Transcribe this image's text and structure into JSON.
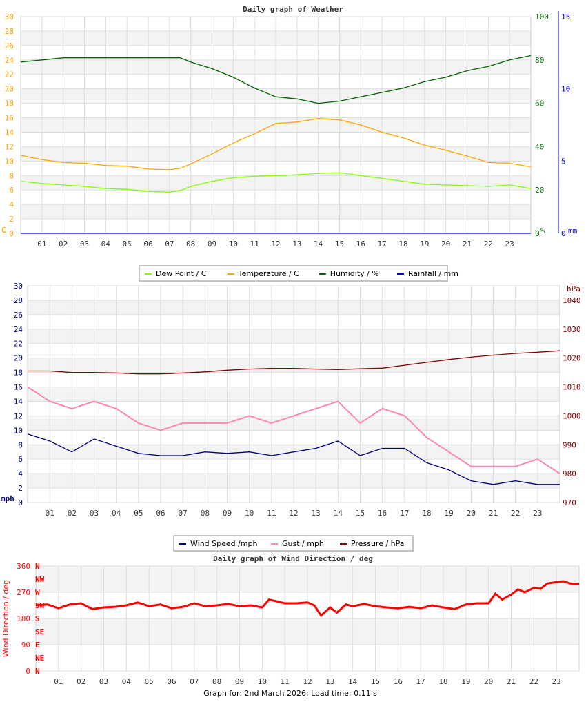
{
  "footer": "Graph for: 2nd March 2026; Load time: 0.11 s",
  "hours": [
    "01",
    "02",
    "03",
    "04",
    "05",
    "06",
    "07",
    "08",
    "09",
    "10",
    "11",
    "12",
    "13",
    "14",
    "15",
    "16",
    "17",
    "18",
    "19",
    "20",
    "21",
    "22",
    "23"
  ],
  "chart_data": [
    {
      "type": "line",
      "title": "Daily graph of Weather",
      "xlim": [
        0,
        24
      ],
      "left_axis": {
        "unit": "C",
        "range": [
          0,
          30
        ],
        "ticks": [
          0,
          2,
          4,
          6,
          8,
          10,
          12,
          14,
          16,
          18,
          20,
          22,
          24,
          26,
          28,
          30
        ],
        "color": "#ffa500"
      },
      "right_axis_1": {
        "unit": "%",
        "range": [
          0,
          100
        ],
        "ticks": [
          0,
          20,
          40,
          60,
          80,
          100
        ],
        "color": "#006400"
      },
      "right_axis_2": {
        "unit": "mm",
        "range": [
          0,
          15
        ],
        "ticks": [
          0,
          5,
          10,
          15
        ],
        "color": "#0000ff"
      },
      "grid": true,
      "legend": "bottom",
      "x": [
        0,
        1,
        2,
        3,
        4,
        5,
        6,
        7,
        7.5,
        8,
        9,
        10,
        11,
        12,
        13,
        14,
        15,
        16,
        17,
        18,
        19,
        20,
        21,
        22,
        23,
        24
      ],
      "series": [
        {
          "name": "Dew Point / C",
          "color": "#7fff00",
          "axis": "left",
          "values": [
            7.2,
            6.9,
            6.7,
            6.5,
            6.2,
            6.1,
            5.8,
            5.7,
            5.9,
            6.5,
            7.2,
            7.7,
            7.9,
            8.0,
            8.1,
            8.3,
            8.4,
            8.0,
            7.6,
            7.2,
            6.8,
            6.7,
            6.6,
            6.5,
            6.7,
            6.2
          ]
        },
        {
          "name": "Temperature / C",
          "color": "#ffa500",
          "axis": "left",
          "values": [
            10.8,
            10.2,
            9.8,
            9.7,
            9.4,
            9.3,
            8.9,
            8.8,
            9.0,
            9.6,
            11.0,
            12.5,
            13.8,
            15.2,
            15.4,
            15.9,
            15.7,
            15.0,
            14.0,
            13.2,
            12.2,
            11.5,
            10.7,
            9.8,
            9.7,
            9.2
          ]
        },
        {
          "name": "Humidity / %",
          "color": "#006400",
          "axis": "right_1",
          "values": [
            79,
            80,
            81,
            81,
            81,
            81,
            81,
            81,
            81,
            79,
            76,
            72,
            67,
            63,
            62,
            60,
            61,
            63,
            65,
            67,
            70,
            72,
            75,
            77,
            80,
            82
          ]
        },
        {
          "name": "Rainfall / mm",
          "color": "#0000ff",
          "axis": "right_2",
          "values": [
            0,
            0,
            0,
            0,
            0,
            0,
            0,
            0,
            0,
            0,
            0,
            0,
            0,
            0,
            0,
            0,
            0,
            0,
            0,
            0,
            0,
            0,
            0,
            0,
            0,
            0
          ]
        }
      ]
    },
    {
      "type": "line",
      "title": "",
      "xlim": [
        0,
        24
      ],
      "left_axis": {
        "unit": "mph",
        "range": [
          0,
          30
        ],
        "ticks": [
          0,
          2,
          4,
          6,
          8,
          10,
          12,
          14,
          16,
          18,
          20,
          22,
          24,
          26,
          28,
          30
        ],
        "color": "#000080"
      },
      "right_axis_1": {
        "unit": "hPa",
        "range": [
          970,
          1045
        ],
        "ticks": [
          970,
          980,
          990,
          1000,
          1010,
          1020,
          1030,
          1040
        ],
        "color": "#800000"
      },
      "grid": true,
      "legend": "bottom",
      "x": [
        0,
        1,
        2,
        3,
        4,
        5,
        6,
        7,
        8,
        9,
        10,
        11,
        12,
        13,
        14,
        15,
        16,
        17,
        18,
        19,
        20,
        21,
        22,
        23,
        24
      ],
      "series": [
        {
          "name": "Wind Speed /mph",
          "color": "#000080",
          "axis": "left",
          "values": [
            9.5,
            8.5,
            7,
            8.8,
            7.8,
            6.8,
            6.5,
            6.5,
            7,
            6.8,
            7,
            6.5,
            7,
            7.5,
            8.5,
            6.5,
            7.5,
            7.5,
            5.5,
            4.5,
            3,
            2.5,
            3,
            2.5,
            2.5
          ]
        },
        {
          "name": "Gust / mph",
          "color": "#ff88aa",
          "axis": "left",
          "values": [
            16,
            14,
            13,
            14,
            13,
            11,
            10,
            11,
            11,
            11,
            12,
            11,
            12,
            13,
            14,
            11,
            13,
            12,
            9,
            7,
            5,
            5,
            5,
            6,
            4
          ]
        },
        {
          "name": "Pressure / hPa",
          "color": "#800000",
          "axis": "right_1",
          "values": [
            1015.5,
            1015.5,
            1015,
            1015,
            1014.8,
            1014.5,
            1014.5,
            1014.8,
            1015.2,
            1015.8,
            1016.2,
            1016.4,
            1016.4,
            1016.2,
            1016,
            1016.3,
            1016.5,
            1017.5,
            1018.5,
            1019.5,
            1020.3,
            1021,
            1021.6,
            1022,
            1022.5
          ]
        }
      ]
    },
    {
      "type": "scatter",
      "title": "Daily graph of Wind Direction / deg",
      "ylabel": "Wind Direction / deg",
      "xlim": [
        0,
        24
      ],
      "ylim": [
        0,
        360
      ],
      "yticks": [
        0,
        90,
        180,
        270,
        360
      ],
      "compass": [
        "N",
        "NE",
        "E",
        "SE",
        "S",
        "SW",
        "W",
        "NW",
        "N"
      ],
      "color": "#ff0000",
      "grid": true,
      "x": [
        0,
        0.5,
        1,
        1.5,
        2,
        2.5,
        3,
        3.5,
        4,
        4.5,
        5,
        5.5,
        6,
        6.5,
        7,
        7.5,
        8,
        8.5,
        9,
        9.5,
        10,
        10.3,
        11,
        11.5,
        12,
        12.3,
        12.6,
        13,
        13.3,
        13.7,
        14,
        14.5,
        15,
        15.5,
        16,
        16.5,
        17,
        17.5,
        18,
        18.5,
        19,
        19.5,
        20,
        20.3,
        20.6,
        21,
        21.3,
        21.6,
        22,
        22.3,
        22.6,
        23,
        23.3,
        23.6,
        24
      ],
      "values": [
        225,
        228,
        215,
        228,
        232,
        212,
        218,
        220,
        225,
        235,
        222,
        228,
        215,
        220,
        232,
        222,
        225,
        230,
        222,
        225,
        218,
        245,
        232,
        232,
        235,
        225,
        190,
        218,
        200,
        228,
        222,
        230,
        222,
        218,
        215,
        220,
        215,
        225,
        218,
        212,
        228,
        232,
        232,
        265,
        245,
        262,
        280,
        270,
        285,
        282,
        300,
        305,
        308,
        300,
        298
      ]
    }
  ]
}
